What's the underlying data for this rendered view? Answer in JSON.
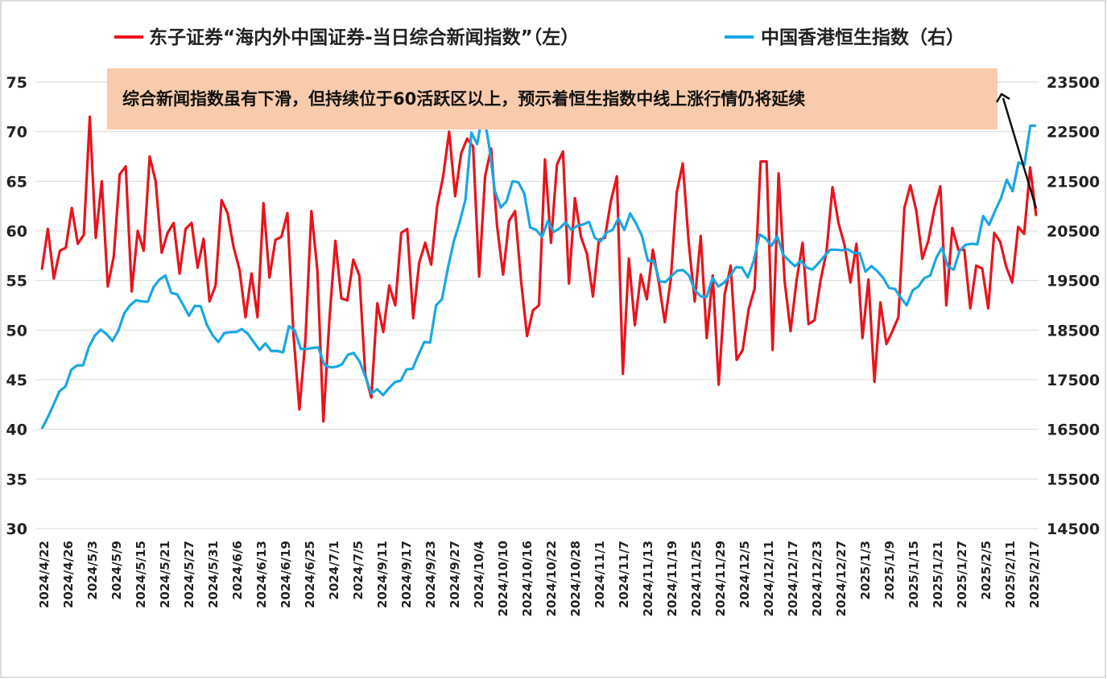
{
  "chart_data": {
    "type": "line",
    "title": "",
    "annotation": "综合新闻指数虽有下滑，但持续位于60活跃区以上，预示着恒生指数中线上涨行情仍将延续",
    "y_left": {
      "ticks": [
        "75",
        "70",
        "65",
        "60",
        "55",
        "50",
        "45",
        "40",
        "35",
        "30"
      ],
      "min": 30,
      "max": 75
    },
    "y_right": {
      "ticks": [
        "23500",
        "22500",
        "21500",
        "20500",
        "19500",
        "18500",
        "17500",
        "16500",
        "15500",
        "14500"
      ],
      "min": 14500,
      "max": 23500
    },
    "x_ticks": [
      "2024/4/22",
      "2024/4/26",
      "2024/5/3",
      "2024/5/9",
      "2024/5/15",
      "2024/5/21",
      "2024/5/27",
      "2024/5/31",
      "2024/6/6",
      "2024/6/13",
      "2024/6/19",
      "2024/6/25",
      "2024/7/1",
      "2024/7/5",
      "2024/9/11",
      "2024/9/17",
      "2024/9/23",
      "2024/9/27",
      "2024/10/4",
      "2024/10/10",
      "2024/10/16",
      "2024/10/22",
      "2024/10/28",
      "2024/11/1",
      "2024/11/7",
      "2024/11/13",
      "2024/11/19",
      "2024/11/25",
      "2024/11/29",
      "2024/12/5",
      "2024/12/11",
      "2024/12/17",
      "2024/12/23",
      "2024/12/27",
      "2025/1/3",
      "2025/1/9",
      "2025/1/15",
      "2025/1/21",
      "2025/1/27",
      "2025/2/5",
      "2025/2/11",
      "2025/2/17"
    ],
    "legend_position": "top",
    "series": [
      {
        "name": "东子证券“海内外中国证券-当日综合新闻指数”（左）",
        "axis": "left",
        "color": "#e8141c",
        "values": [
          56.1,
          60.2,
          55.2,
          58.0,
          58.3,
          62.3,
          58.7,
          59.6,
          71.5,
          59.3,
          65.0,
          54.4,
          57.4,
          65.7,
          66.5,
          53.9,
          60.0,
          58.0,
          67.5,
          65.0,
          57.8,
          59.8,
          60.8,
          55.7,
          60.2,
          60.8,
          56.3,
          59.2,
          52.9,
          54.5,
          63.1,
          61.8,
          58.4,
          56.1,
          51.3,
          55.7,
          51.3,
          62.8,
          55.3,
          59.1,
          59.4,
          61.8,
          49.6,
          42.0,
          49.0,
          62.0,
          56.0,
          40.8,
          51.0,
          59.0,
          53.2,
          53.0,
          57.1,
          55.5,
          45.5,
          43.2,
          52.7,
          49.8,
          54.5,
          52.5,
          59.8,
          60.2,
          51.2,
          56.8,
          58.8,
          56.6,
          62.5,
          65.5,
          70.0,
          63.5,
          67.8,
          69.3,
          68.5,
          55.4,
          65.5,
          68.3,
          60.5,
          55.6,
          61.0,
          62.0,
          55.0,
          49.4,
          52.0,
          52.5,
          67.2,
          58.8,
          66.7,
          68.0,
          54.7,
          63.3,
          59.4,
          57.7,
          53.4,
          59.1,
          59.3,
          63.0,
          65.5,
          45.6,
          57.2,
          50.5,
          55.6,
          53.1,
          58.1,
          54.8,
          50.8,
          55.1,
          63.9,
          66.8,
          58.8,
          52.9,
          59.5,
          49.2,
          55.5,
          44.5,
          53.6,
          56.5,
          47.0,
          48.0,
          52.1,
          54.2,
          67.0,
          67.0,
          48.0,
          65.8,
          55.0,
          49.9,
          55.0,
          58.8,
          50.6,
          51.0,
          55.0,
          57.9,
          64.4,
          60.8,
          58.6,
          54.8,
          58.7,
          49.2,
          55.1,
          44.8,
          52.8,
          48.6,
          49.9,
          51.3,
          62.3,
          64.6,
          62.0,
          57.2,
          59.0,
          62.2,
          64.5,
          52.5,
          60.3,
          58.1,
          58.1,
          52.2,
          56.5,
          56.2,
          52.2,
          59.8,
          58.9,
          56.4,
          54.8,
          60.4,
          59.7,
          66.4,
          61.5
        ]
      },
      {
        "name": "中国香港恒生指数（右）",
        "axis": "right",
        "color": "#1aa7e3",
        "values": [
          16510,
          16740,
          17000,
          17270,
          17360,
          17700,
          17790,
          17790,
          18160,
          18390,
          18510,
          18420,
          18280,
          18490,
          18840,
          19000,
          19100,
          19080,
          19070,
          19370,
          19520,
          19600,
          19250,
          19220,
          19010,
          18790,
          18990,
          18980,
          18620,
          18400,
          18260,
          18440,
          18460,
          18460,
          18520,
          18430,
          18260,
          18100,
          18230,
          18080,
          18080,
          18050,
          18580,
          18490,
          18120,
          18120,
          18140,
          18150,
          17800,
          17750,
          17760,
          17810,
          18000,
          18040,
          17870,
          17560,
          17220,
          17310,
          17190,
          17330,
          17450,
          17480,
          17710,
          17720,
          18000,
          18260,
          18250,
          19000,
          19120,
          19740,
          20280,
          20670,
          21130,
          22480,
          22250,
          22930,
          22230,
          21300,
          20970,
          21100,
          21500,
          21480,
          21250,
          20570,
          20520,
          20380,
          20700,
          20480,
          20550,
          20670,
          20520,
          20600,
          20630,
          20680,
          20360,
          20290,
          20470,
          20520,
          20750,
          20520,
          20850,
          20650,
          20400,
          19900,
          19890,
          19480,
          19470,
          19590,
          19700,
          19710,
          19600,
          19300,
          19180,
          19170,
          19550,
          19380,
          19460,
          19600,
          19770,
          19760,
          19560,
          19900,
          20430,
          20350,
          20200,
          20390,
          20020,
          19900,
          19790,
          19900,
          19760,
          19720,
          19850,
          19990,
          20120,
          20120,
          20110,
          20130,
          20060,
          20050,
          19680,
          19790,
          19690,
          19550,
          19350,
          19330,
          19150,
          19000,
          19300,
          19380,
          19550,
          19600,
          19950,
          20160,
          19780,
          19720,
          20100,
          20220,
          20240,
          20230,
          20800,
          20620,
          20900,
          21150,
          21530,
          21300,
          21880,
          21830,
          22620,
          22620
        ]
      }
    ]
  }
}
